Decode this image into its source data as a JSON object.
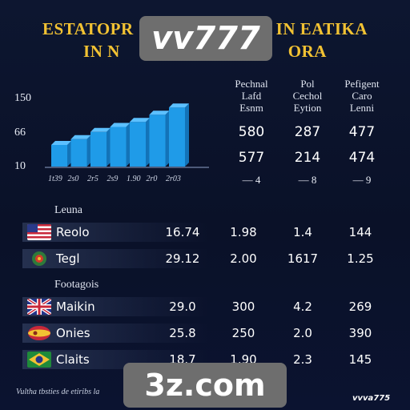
{
  "title": {
    "line1": "ESTATOPR",
    "line1b": "IN EATIKA",
    "line2": "IN N",
    "line2b": "ORA"
  },
  "watermarks": {
    "top": "vv777",
    "bottom": "3z.com"
  },
  "chart_data": {
    "type": "bar",
    "y_ticks": [
      "150",
      "66",
      "10"
    ],
    "categories": [
      "1t39",
      "2s0",
      "2r5",
      "2s9",
      "1.90",
      "2r0",
      "2r03"
    ],
    "values": [
      30,
      38,
      48,
      55,
      62,
      72,
      82
    ],
    "ylim": [
      0,
      100
    ],
    "color": "#1f9be8"
  },
  "table_columns": [
    {
      "head1": "Pechnal",
      "head2": "Lafd",
      "head3": "Esnm",
      "v1": "580",
      "v2": "577",
      "v3": "— 4"
    },
    {
      "head1": "Pol",
      "head2": "Cechol",
      "head3": "Eytion",
      "v1": "287",
      "v2": "214",
      "v3": "— 8"
    },
    {
      "head1": "Pefigent",
      "head2": "Caro",
      "head3": "Lenni",
      "v1": "477",
      "v2": "474",
      "v3": "— 9"
    }
  ],
  "section1": {
    "label": "Leuna",
    "rows": [
      {
        "name": "Reolo",
        "c0": "16.74",
        "c1": "1.98",
        "c2": "1.4",
        "c3": "144",
        "flag": "us-flag"
      },
      {
        "name": "Tegl",
        "c0": "29.12",
        "c1": "2.00",
        "c2": "1617",
        "c3": "1.25",
        "flag": "crest-flag"
      }
    ]
  },
  "section2": {
    "label": "Footagois",
    "rows": [
      {
        "name": "Maikin",
        "c0": "29.0",
        "c1": "300",
        "c2": "4.2",
        "c3": "269",
        "flag": "uk-flag"
      },
      {
        "name": "Onies",
        "c0": "25.8",
        "c1": "250",
        "c2": "2.0",
        "c3": "390",
        "flag": "spain-flag"
      },
      {
        "name": "Claits",
        "c0": "18.7",
        "c1": "1.90",
        "c2": "2.3",
        "c3": "145",
        "flag": "brazil-flag"
      }
    ]
  },
  "footer": {
    "left": "Vultha tbsties de etiribs la",
    "right": "vvva775"
  },
  "colors": {
    "background": "#0a1128",
    "title": "#f2c233",
    "bar": "#1f9be8",
    "watermark": "#6e6e6e"
  }
}
